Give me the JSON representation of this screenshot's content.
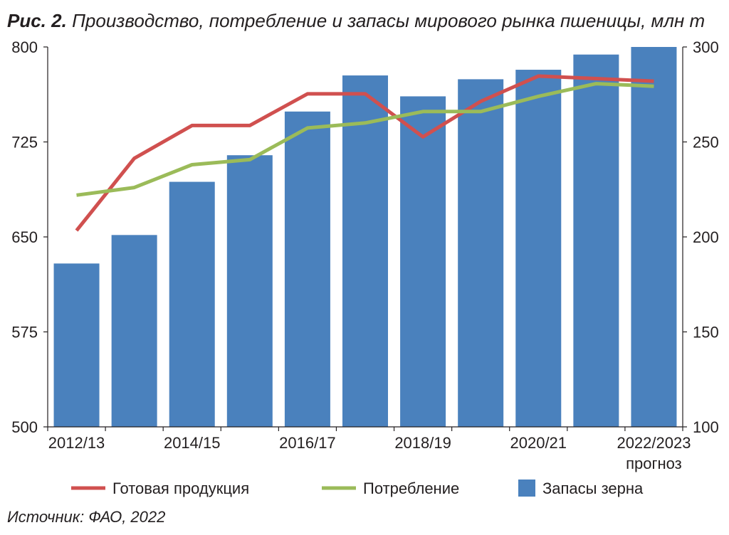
{
  "title_bold": "Рис. 2.",
  "title_text": "Производство, потребление и запасы мирового рынка пшеницы, млн т",
  "source": "Источник: ФАО, 2022",
  "colors": {
    "production": "#d0504f",
    "consumption": "#9bbb59",
    "stocks": "#4a81bd"
  },
  "chart_data": {
    "type": "bar",
    "categories": [
      "2012/13",
      "2013/14",
      "2014/15",
      "2015/16",
      "2016/17",
      "2017/18",
      "2018/19",
      "2019/20",
      "2020/21",
      "2021/22",
      "2022/2023 прогноз"
    ],
    "x_tick_labels": [
      "2012/13",
      "",
      "2014/15",
      "",
      "2016/17",
      "",
      "2018/19",
      "",
      "2020/21",
      "",
      "2022/2023"
    ],
    "x_tick_sublabel": "прогноз",
    "ylim_left": [
      500,
      800
    ],
    "ylim_right": [
      100,
      300
    ],
    "yticks_left": [
      "800",
      "725",
      "650",
      "575",
      "500"
    ],
    "yticks_left_values": [
      800,
      725,
      650,
      575,
      500
    ],
    "yticks_right": [
      "300",
      "250",
      "200",
      "150",
      "100"
    ],
    "yticks_right_values": [
      300,
      250,
      200,
      150,
      100
    ],
    "series": [
      {
        "name": "Готовая продукция",
        "type": "line",
        "axis": "left",
        "values": [
          655,
          712,
          738,
          738,
          763,
          763,
          729,
          757,
          777,
          775,
          773
        ]
      },
      {
        "name": "Потребление",
        "type": "line",
        "axis": "left",
        "values": [
          683,
          689,
          707,
          711,
          736,
          740,
          749,
          749,
          761,
          771,
          769
        ]
      },
      {
        "name": "Запасы зерна",
        "type": "bar",
        "axis": "right",
        "values": [
          186,
          201,
          229,
          243,
          266,
          285,
          274,
          283,
          288,
          296,
          300
        ]
      }
    ],
    "legend_position": "bottom",
    "grid": false
  }
}
